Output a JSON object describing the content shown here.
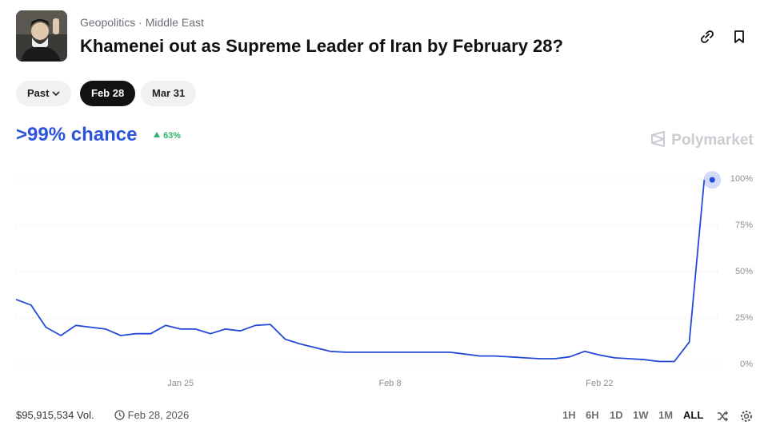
{
  "header": {
    "category": "Geopolitics",
    "subcategory": "Middle East",
    "title": "Khamenei out as Supreme Leader of Iran by February 28?",
    "tabs": [
      "Past",
      "Feb 28",
      "Mar 31"
    ]
  },
  "chart_data": {
    "type": "line",
    "headline": ">99% chance",
    "change": "63%",
    "brand": "Polymarket",
    "color": "#2448d8",
    "x": [
      "Jan 14",
      "Jan 15",
      "Jan 16",
      "Jan 17",
      "Jan 18",
      "Jan 19",
      "Jan 20",
      "Jan 21",
      "Jan 22",
      "Jan 23",
      "Jan 24",
      "Jan 25",
      "Jan 26",
      "Jan 27",
      "Jan 28",
      "Jan 29",
      "Jan 30",
      "Jan 31",
      "Feb 1",
      "Feb 2",
      "Feb 3",
      "Feb 4",
      "Feb 5",
      "Feb 6",
      "Feb 7",
      "Feb 8",
      "Feb 9",
      "Feb 10",
      "Feb 11",
      "Feb 12",
      "Feb 13",
      "Feb 14",
      "Feb 15",
      "Feb 16",
      "Feb 17",
      "Feb 18",
      "Feb 19",
      "Feb 20",
      "Feb 21",
      "Feb 22",
      "Feb 23",
      "Feb 24",
      "Feb 25",
      "Feb 26",
      "Feb 27",
      "Feb 28",
      "Mar 1"
    ],
    "values": [
      35,
      32,
      20,
      15.5,
      21,
      20,
      19,
      15.5,
      16.5,
      16.5,
      21,
      19,
      19,
      16.5,
      19,
      18,
      21,
      21.5,
      13.5,
      11,
      9,
      7,
      6.5,
      6.5,
      6.5,
      6.5,
      6.5,
      6.5,
      6.5,
      6.5,
      5.5,
      4.5,
      4.5,
      4,
      3.5,
      3,
      3,
      4,
      7,
      5,
      3.5,
      3,
      2.5,
      1.5,
      1.5,
      12,
      99.5
    ],
    "xlim": [
      "Jan 14",
      "Mar 2"
    ],
    "xticks": [
      "Jan 25",
      "Feb 8",
      "Feb 22"
    ],
    "ylim": [
      0,
      100
    ],
    "yticks": [
      {
        "value": 0,
        "label": "0%"
      },
      {
        "value": 25,
        "label": "25%"
      },
      {
        "value": 50,
        "label": "50%"
      },
      {
        "value": 75,
        "label": "75%"
      },
      {
        "value": 100,
        "label": "100%"
      }
    ],
    "grid": true
  },
  "footer": {
    "volume": "$95,915,534 Vol.",
    "end_date": "Feb 28, 2026",
    "ranges": [
      "1H",
      "6H",
      "1D",
      "1W",
      "1M",
      "ALL"
    ]
  }
}
